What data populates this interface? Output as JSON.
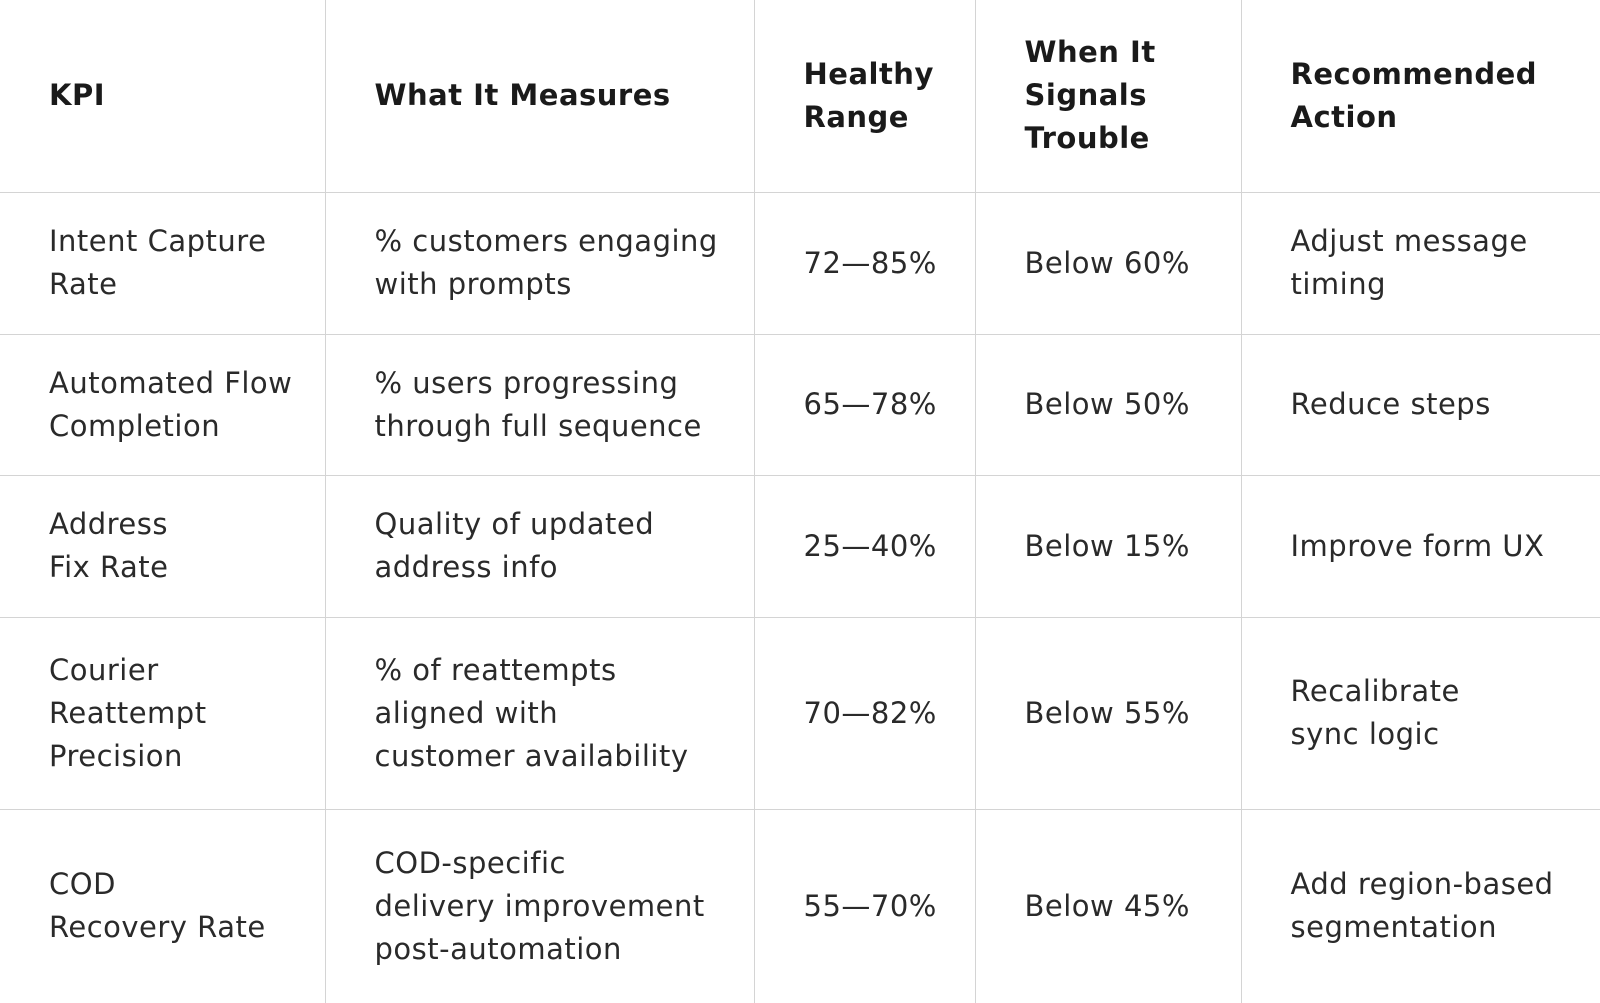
{
  "table": {
    "header": [
      "KPI",
      "What It Measures",
      "Healthy\nRange",
      "When It\nSignals\nTrouble",
      "Recommended\nAction"
    ],
    "rows": [
      [
        "Intent Capture\nRate",
        "% customers engaging\nwith prompts",
        "72—85%",
        "Below 60%",
        "Adjust message\ntiming"
      ],
      [
        "Automated Flow\nCompletion",
        "% users progressing\nthrough full sequence",
        "65—78%",
        "Below 50%",
        "Reduce steps"
      ],
      [
        "Address\nFix Rate",
        "Quality of updated\naddress info",
        "25—40%",
        "Below 15%",
        "Improve form UX"
      ],
      [
        "Courier\nReattempt\nPrecision",
        "% of reattempts\naligned with\ncustomer availability",
        "70—82%",
        "Below 55%",
        "Recalibrate\nsync logic"
      ],
      [
        "COD\nRecovery Rate",
        "COD-specific\ndelivery improvement\npost-automation",
        "55—70%",
        "Below 45%",
        "Add region-based\nsegmentation"
      ]
    ]
  }
}
